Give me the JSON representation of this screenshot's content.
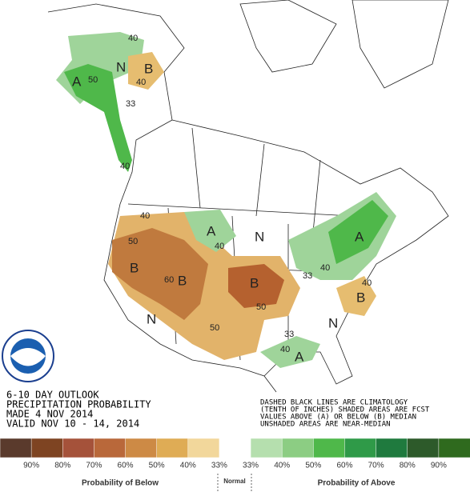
{
  "header": {
    "lines": [
      "6-10 DAY OUTLOOK",
      "PRECIPITATION PROBABILITY",
      "MADE  4 NOV 2014",
      "VALID  NOV 10 - 14, 2014"
    ]
  },
  "note": {
    "lines": [
      "DASHED BLACK LINES ARE CLIMATOLOGY",
      "(TENTH OF INCHES) SHADED AREAS ARE FCST",
      "VALUES ABOVE (A) OR BELOW (B) MEDIAN",
      "UNSHADED AREAS ARE NEAR-MEDIAN"
    ]
  },
  "map": {
    "labels": [
      "40",
      "N",
      "B",
      "50",
      "40",
      "A",
      "33",
      "40",
      "40",
      "50",
      "B",
      "60",
      "B",
      "A",
      "40",
      "N",
      "B",
      "50",
      "50",
      "N",
      "33",
      "40",
      "A",
      "B",
      "40",
      "N",
      "A",
      "40",
      "33"
    ]
  },
  "legend": {
    "labels": [
      "90%",
      "80%",
      "70%",
      "60%",
      "50%",
      "40%",
      "33%",
      "33%",
      "40%",
      "50%",
      "60%",
      "70%",
      "80%",
      "90%"
    ],
    "colors": [
      "#5a3a2c",
      "#7e4422",
      "#a5523a",
      "#b9683a",
      "#cd8a45",
      "#dfac55",
      "#f2d79b",
      "#ffffff",
      "#b5dfae",
      "#8ccd83",
      "#4fb84a",
      "#2f9a48",
      "#1f7a3e",
      "#2d5a2a",
      "#2f6a1e"
    ],
    "captions": [
      "Probability of Below",
      "Normal",
      "Probability of Above"
    ]
  }
}
